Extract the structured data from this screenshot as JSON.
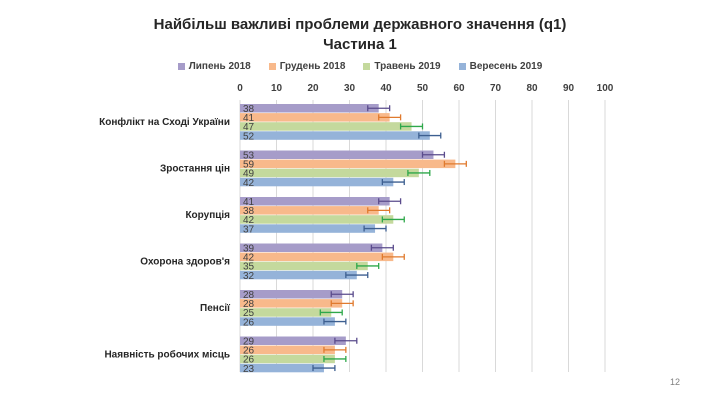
{
  "chart_data": {
    "type": "bar",
    "orientation": "horizontal",
    "title": "Найбільш важливі проблеми державного значення (q1)",
    "subtitle": "Частина 1",
    "categories": [
      "Конфлікт на Сході України",
      "Зростання цін",
      "Корупція",
      "Охорона здоров'я",
      "Пенсії",
      "Наявність робочих місць"
    ],
    "series": [
      {
        "name": "Липень 2018",
        "color": "#a69cc9",
        "error_color": "#5a4b8c",
        "values": [
          38,
          53,
          41,
          39,
          28,
          29
        ]
      },
      {
        "name": "Грудень 2018",
        "color": "#f8b98b",
        "error_color": "#e07a2e",
        "values": [
          41,
          59,
          38,
          42,
          28,
          26
        ]
      },
      {
        "name": "Травень 2019",
        "color": "#c4d99d",
        "error_color": "#2ea84a",
        "values": [
          47,
          49,
          42,
          35,
          25,
          26
        ]
      },
      {
        "name": "Вересень 2019",
        "color": "#95b3d9",
        "error_color": "#3d5f90",
        "values": [
          52,
          42,
          37,
          32,
          26,
          23
        ]
      }
    ],
    "error_margin": 3,
    "xlim": [
      0,
      100
    ],
    "xticks": [
      "0",
      "10",
      "20",
      "30",
      "40",
      "50",
      "60",
      "70",
      "80",
      "90",
      "100"
    ],
    "grid": true,
    "legend_position": "top",
    "data_labels": true
  },
  "page_number": "12"
}
